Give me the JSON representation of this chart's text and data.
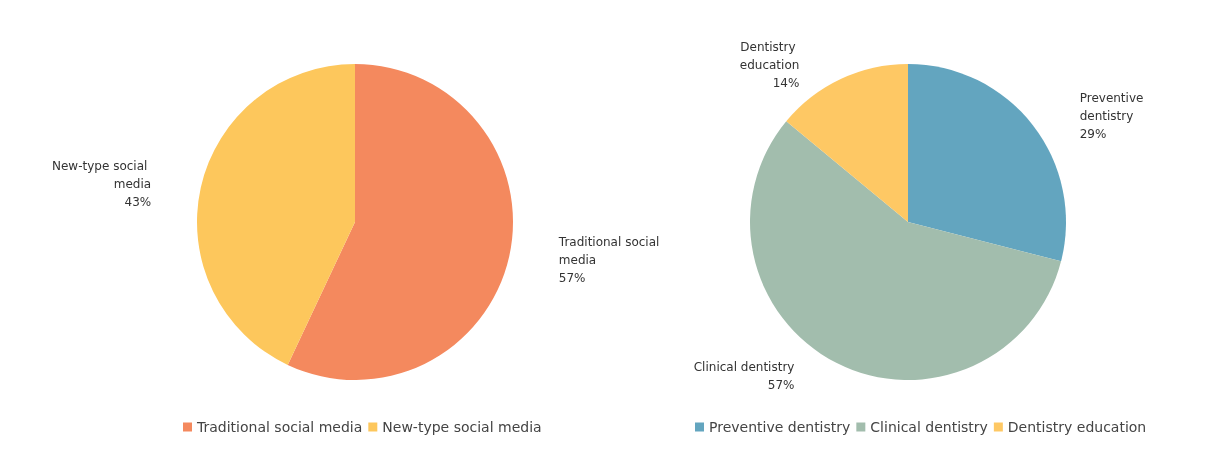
{
  "chart_data": [
    {
      "type": "pie",
      "categories": [
        "Traditional social media",
        "New-type social media"
      ],
      "values": [
        57,
        43
      ],
      "colors": [
        "#f4895e",
        "#fdc75c"
      ],
      "value_labels": [
        "57%",
        "43%"
      ],
      "legend": "bottom"
    },
    {
      "type": "pie",
      "categories": [
        "Preventive dentistry",
        "Clinical dentistry",
        "Dentistry education"
      ],
      "values": [
        29,
        57,
        14
      ],
      "colors": [
        "#63a5bf",
        "#a2bdad",
        "#fec864"
      ],
      "value_labels": [
        "29%",
        "57%",
        "14%"
      ],
      "legend": "bottom"
    }
  ]
}
